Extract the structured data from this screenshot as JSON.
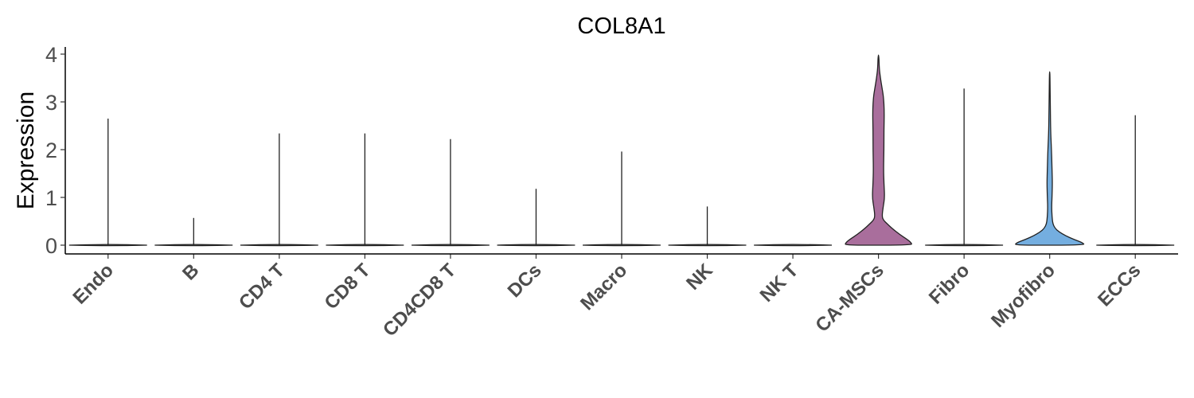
{
  "chart_data": {
    "type": "violin",
    "title": "COL8A1",
    "xlabel": "",
    "ylabel": "Expression",
    "ylim": [
      -0.2,
      4.15
    ],
    "yticks": [
      0,
      1,
      2,
      3,
      4
    ],
    "grid": false,
    "legend": "none",
    "categories": [
      "Endo",
      "B",
      "CD4 T",
      "CD8 T",
      "CD4CD8 T",
      "DCs",
      "Macro",
      "NK",
      "NK T",
      "CA-MSCs",
      "Fibro",
      "Myofibro",
      "ECCs"
    ],
    "max_values": [
      2.65,
      0.57,
      2.34,
      2.34,
      2.22,
      1.18,
      1.96,
      0.81,
      0.0,
      3.98,
      3.28,
      3.63,
      2.72
    ],
    "colors": {
      "CA-MSCs": "#a96e9c",
      "Myofibro": "#74aee0",
      "default": "#ffffff",
      "outline": "#222222"
    },
    "density_profiles": {
      "CA-MSCs": [
        [
          0,
          0.86
        ],
        [
          0.05,
          0.84
        ],
        [
          0.12,
          0.74
        ],
        [
          0.22,
          0.55
        ],
        [
          0.35,
          0.35
        ],
        [
          0.45,
          0.22
        ],
        [
          0.52,
          0.13
        ],
        [
          0.6,
          0.09
        ],
        [
          0.8,
          0.12
        ],
        [
          1.0,
          0.16
        ],
        [
          1.3,
          0.14
        ],
        [
          1.6,
          0.13
        ],
        [
          2.0,
          0.14
        ],
        [
          2.4,
          0.14
        ],
        [
          2.8,
          0.15
        ],
        [
          3.1,
          0.13
        ],
        [
          3.3,
          0.09
        ],
        [
          3.5,
          0.05
        ],
        [
          3.7,
          0.02
        ],
        [
          3.98,
          0.01
        ]
      ],
      "Myofibro": [
        [
          0,
          0.9
        ],
        [
          0.05,
          0.85
        ],
        [
          0.12,
          0.62
        ],
        [
          0.2,
          0.4
        ],
        [
          0.28,
          0.24
        ],
        [
          0.35,
          0.14
        ],
        [
          0.45,
          0.08
        ],
        [
          0.6,
          0.06
        ],
        [
          0.8,
          0.05
        ],
        [
          1.0,
          0.06
        ],
        [
          1.3,
          0.07
        ],
        [
          1.6,
          0.06
        ],
        [
          1.9,
          0.05
        ],
        [
          2.1,
          0.04
        ],
        [
          2.4,
          0.025
        ],
        [
          2.8,
          0.018
        ],
        [
          3.2,
          0.012
        ],
        [
          3.63,
          0.006
        ]
      ]
    }
  }
}
